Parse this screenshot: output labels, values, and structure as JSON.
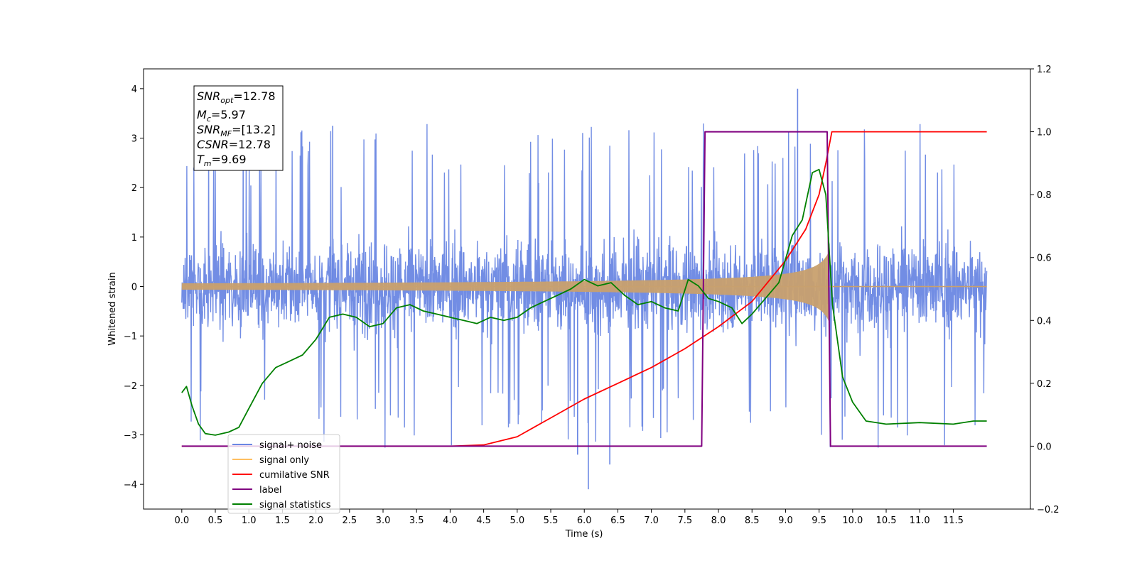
{
  "chart_data": {
    "type": "line",
    "xlabel": "Time (s)",
    "ylabel": "Whitened strain",
    "xlim": [
      -0.57,
      12.65
    ],
    "ylim": [
      -4.5,
      4.4
    ],
    "y2lim": [
      -0.2,
      1.2
    ],
    "x_ticks": [
      "0.0",
      "0.5",
      "1.0",
      "1.5",
      "2.0",
      "2.5",
      "3.0",
      "3.5",
      "4.0",
      "4.5",
      "5.0",
      "5.5",
      "6.0",
      "6.5",
      "7.0",
      "7.5",
      "8.0",
      "8.5",
      "9.0",
      "9.5",
      "10.0",
      "10.5",
      "11.0",
      "11.5"
    ],
    "y_ticks": [
      "−4",
      "−3",
      "−2",
      "−1",
      "0",
      "1",
      "2",
      "3",
      "4"
    ],
    "y2_ticks": [
      "−0.2",
      "0.0",
      "0.2",
      "0.4",
      "0.6",
      "0.8",
      "1.0",
      "1.2"
    ],
    "annotation": {
      "snr_opt": {
        "base": "SNR",
        "sub": "opt",
        "value": "=12.78"
      },
      "mc": {
        "base": "M",
        "sub": "c",
        "value": "=5.97"
      },
      "snr_mf": {
        "base": "SNR",
        "sub": "MF",
        "value": "=[13.2]"
      },
      "csnr": {
        "base": "CSNR",
        "value": "=12.78"
      },
      "tm": {
        "base": "T",
        "sub": "m",
        "value": "=9.69"
      }
    },
    "legend": {
      "position": "lower-left",
      "entries": [
        {
          "label": "signal+ noise",
          "color": "#6a87e3"
        },
        {
          "label": "signal only",
          "color": "#ffbf60"
        },
        {
          "label": "cumilative SNR",
          "color": "#ff0000"
        },
        {
          "label": "label",
          "color": "#800080"
        },
        {
          "label": "signal statistics",
          "color": "#008000"
        }
      ]
    },
    "series": [
      {
        "name": "signal+ noise",
        "axis": "left",
        "color": "#6a87e3",
        "t_start": 0.0,
        "t_end": 12.0,
        "noise_band": [
          -1.3,
          1.3
        ],
        "peak_max": 4.0,
        "peak_min": -4.1
      },
      {
        "name": "signal only",
        "axis": "left",
        "color": "#c8a06e",
        "t_start": 0.0,
        "t_merge": 9.65,
        "t_end": 12.0,
        "amplitude_at_merge": 0.72
      },
      {
        "name": "cumilative SNR",
        "axis": "right",
        "color": "#ff0000",
        "x": [
          0.0,
          4.0,
          4.5,
          5.0,
          5.5,
          6.0,
          6.5,
          7.0,
          7.5,
          8.0,
          8.5,
          9.0,
          9.3,
          9.5,
          9.6,
          9.69,
          12.0
        ],
        "y": [
          0.0,
          0.0,
          0.004,
          0.03,
          0.09,
          0.15,
          0.2,
          0.25,
          0.31,
          0.38,
          0.46,
          0.59,
          0.69,
          0.8,
          0.9,
          1.0,
          1.0
        ]
      },
      {
        "name": "label",
        "axis": "right",
        "color": "#800080",
        "x": [
          0.0,
          7.75,
          7.8,
          9.62,
          9.67,
          12.0
        ],
        "y": [
          0.0,
          0.0,
          1.0,
          1.0,
          0.0,
          0.0
        ]
      },
      {
        "name": "signal statistics",
        "axis": "right",
        "color": "#008000",
        "x": [
          0.0,
          0.07,
          0.15,
          0.25,
          0.35,
          0.5,
          0.7,
          0.85,
          1.0,
          1.2,
          1.4,
          1.6,
          1.8,
          2.0,
          2.2,
          2.4,
          2.6,
          2.8,
          3.0,
          3.2,
          3.4,
          3.6,
          3.8,
          4.0,
          4.2,
          4.4,
          4.6,
          4.8,
          5.0,
          5.2,
          5.4,
          5.6,
          5.8,
          6.0,
          6.2,
          6.4,
          6.6,
          6.8,
          7.0,
          7.2,
          7.4,
          7.55,
          7.7,
          7.85,
          8.0,
          8.2,
          8.35,
          8.5,
          8.7,
          8.9,
          9.1,
          9.25,
          9.4,
          9.5,
          9.6,
          9.7,
          9.85,
          10.0,
          10.2,
          10.5,
          11.0,
          11.5,
          11.8,
          12.0
        ],
        "y": [
          0.17,
          0.19,
          0.13,
          0.07,
          0.04,
          0.035,
          0.045,
          0.06,
          0.12,
          0.2,
          0.25,
          0.27,
          0.29,
          0.34,
          0.41,
          0.42,
          0.41,
          0.38,
          0.39,
          0.44,
          0.45,
          0.43,
          0.42,
          0.41,
          0.4,
          0.39,
          0.41,
          0.4,
          0.41,
          0.44,
          0.46,
          0.48,
          0.5,
          0.53,
          0.51,
          0.52,
          0.48,
          0.45,
          0.46,
          0.44,
          0.43,
          0.53,
          0.51,
          0.47,
          0.46,
          0.44,
          0.39,
          0.42,
          0.47,
          0.52,
          0.67,
          0.72,
          0.87,
          0.88,
          0.8,
          0.45,
          0.22,
          0.14,
          0.08,
          0.07,
          0.075,
          0.07,
          0.08,
          0.08
        ]
      }
    ]
  }
}
